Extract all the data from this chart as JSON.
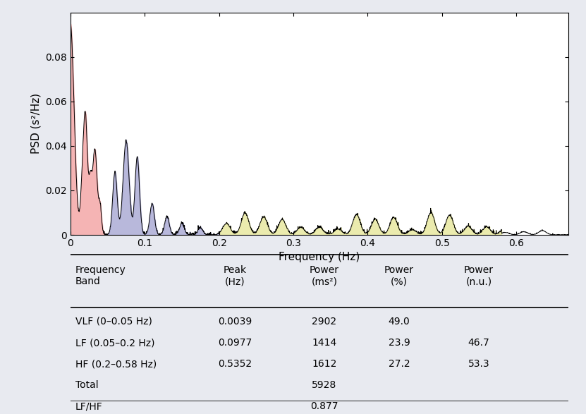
{
  "background_color": "#e8eaf0",
  "plot_bg_color": "#ffffff",
  "vlf_color": "#f4a7a7",
  "lf_color": "#a0a0d0",
  "hf_color": "#e8e8a0",
  "line_color": "#000000",
  "vlf_range": [
    0,
    0.05
  ],
  "lf_range": [
    0.05,
    0.2
  ],
  "hf_range": [
    0.2,
    0.58
  ],
  "xmax": 0.67,
  "ylabel": "PSD (s²/Hz)",
  "xlabel": "Frequency (Hz)",
  "yticks": [
    0,
    0.02,
    0.04,
    0.06,
    0.08
  ],
  "xticks": [
    0,
    0.1,
    0.2,
    0.3,
    0.4,
    0.5,
    0.6
  ],
  "table_headers": [
    "Frequency\nBand",
    "Peak\n(Hz)",
    "Power\n(ms²)",
    "Power\n(%)",
    "Power\n(n.u.)"
  ],
  "table_rows": [
    [
      "VLF (0–0.05 Hz)",
      "0.0039",
      "2902",
      "49.0",
      ""
    ],
    [
      "LF (0.05–0.2 Hz)",
      "0.0977",
      "1414",
      "23.9",
      "46.7"
    ],
    [
      "HF (0.2–0.58 Hz)",
      "0.5352",
      "1612",
      "27.2",
      "53.3"
    ],
    [
      "Total",
      "",
      "5928",
      "",
      ""
    ],
    [
      "LF/HF",
      "",
      "0.877",
      "",
      ""
    ]
  ],
  "seed": 42
}
